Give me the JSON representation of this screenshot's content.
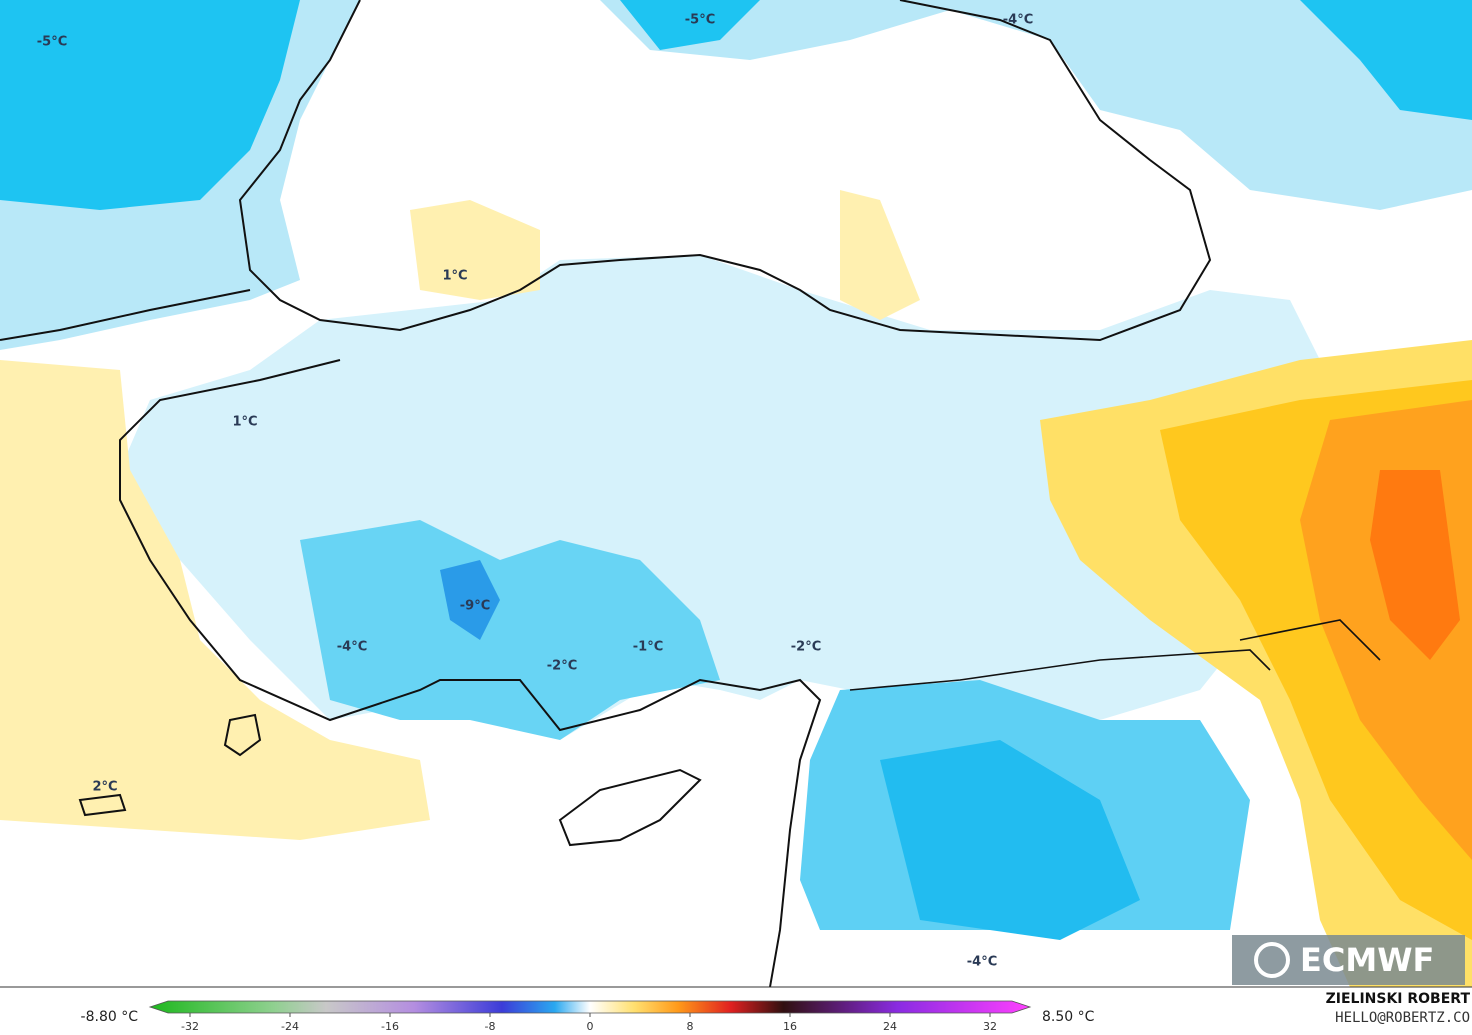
{
  "map": {
    "labels": [
      "-5°C",
      "-5°C",
      "-4°C",
      "1°C",
      "1°C",
      "-9°C",
      "-4°C",
      "-1°C",
      "-2°C",
      "-2°C",
      "2°C",
      "-4°C"
    ],
    "logo": "ECMWF",
    "author": "ZIELINSKI ROBERT",
    "contact": "HELLO@ROBERTZ.CO"
  },
  "colorbar": {
    "min_label": "-8.80 °C",
    "max_label": "8.50 °C",
    "ticks": [
      -32,
      -24,
      -16,
      -8,
      0,
      8,
      16,
      24,
      32
    ]
  }
}
